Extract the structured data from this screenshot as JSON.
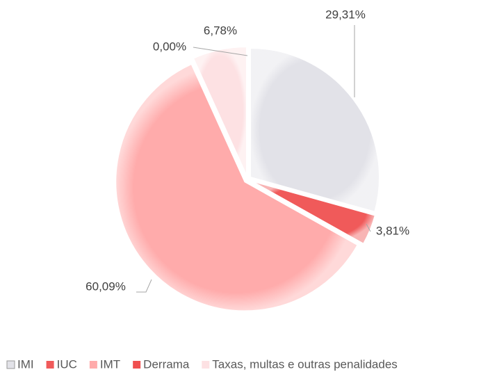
{
  "chart_data": {
    "type": "pie",
    "categories": [
      "IMI",
      "IUC",
      "IMT",
      "Derrama",
      "Taxas, multas e outras penalidades"
    ],
    "values": [
      29.31,
      3.81,
      60.09,
      0.0,
      6.78
    ],
    "value_labels": [
      "29,31%",
      "3,81%",
      "60,09%",
      "0,00%",
      "6,78%"
    ],
    "colors": [
      "#e2e2e8",
      "#f05a5a",
      "#ffabab",
      "#f05050",
      "#fde1e3"
    ],
    "legend": "bottom"
  }
}
